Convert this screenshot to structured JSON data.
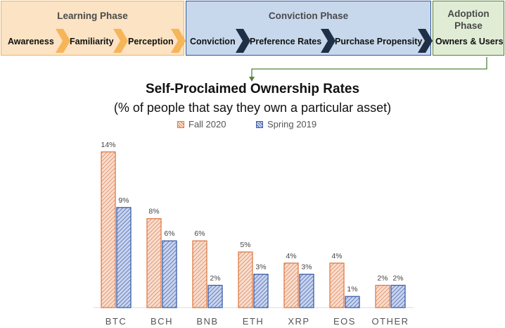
{
  "phases": {
    "learning": {
      "title": "Learning Phase",
      "steps": [
        "Awareness",
        "Familiarity",
        "Perception"
      ],
      "fill": "#fbe3c3",
      "border": "#f2b462",
      "chevron_color": "#f6b558"
    },
    "conviction": {
      "title": "Conviction Phase",
      "steps": [
        "Conviction",
        "Preference Rates",
        "Purchase Propensity"
      ],
      "fill": "#c7d8ec",
      "border": "#2f5597",
      "chevron_color": "#1f2f46"
    },
    "adoption": {
      "title": "Adoption\nPhase",
      "steps": [
        "Owners & Users"
      ],
      "fill": "#e1ecd5",
      "border": "#548235",
      "connector_color": "#548235"
    }
  },
  "chart_data": {
    "type": "bar",
    "title": "Self-Proclaimed Ownership Rates",
    "subtitle": "(% of people that say they own a particular asset)",
    "xlabel": "",
    "ylabel": "",
    "ylim": [
      0,
      15
    ],
    "grid": false,
    "legend_position": "top",
    "categories": [
      "BTC",
      "BCH",
      "BNB",
      "ETH",
      "XRP",
      "EOS",
      "OTHER"
    ],
    "series": [
      {
        "name": "Fall 2020",
        "values": [
          14,
          8,
          6,
          5,
          4,
          4,
          2
        ],
        "labels": [
          "14%",
          "8%",
          "6%",
          "5%",
          "4%",
          "4%",
          "2%"
        ],
        "color": "#e07b48",
        "fill": "#f7ded0",
        "pattern": "diagonal-hatch"
      },
      {
        "name": "Spring 2019",
        "values": [
          9,
          6,
          2,
          3,
          3,
          1,
          2
        ],
        "labels": [
          "9%",
          "6%",
          "2%",
          "3%",
          "3%",
          "1%",
          "2%"
        ],
        "color": "#3d5ea8",
        "fill": "#c9d4ee",
        "pattern": "diagonal-hatch"
      }
    ]
  }
}
